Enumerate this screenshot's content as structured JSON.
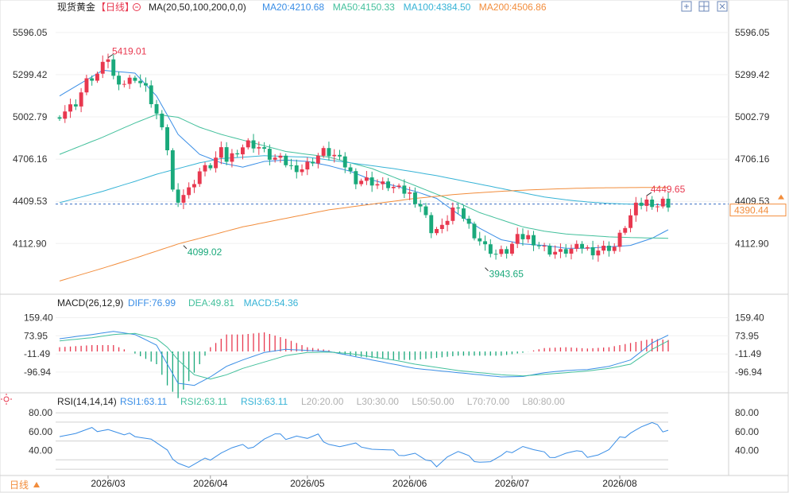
{
  "header": {
    "symbol": "现货黄金",
    "period_tag": "【日线】",
    "ma_label": "MA(20,50,100,200,0,0)",
    "ma_values": [
      {
        "text": "MA20:4210.68",
        "color": "#3a8ee6"
      },
      {
        "text": "MA50:4150.33",
        "color": "#43c09c"
      },
      {
        "text": "MA100:4384.50",
        "color": "#36b3d6"
      },
      {
        "text": "MA200:4506.86",
        "color": "#f28d3c"
      }
    ],
    "icons": [
      "expand-icon",
      "grid-icon",
      "close-icon"
    ]
  },
  "macd_header": {
    "label": "MACD(26,12,9)",
    "values": [
      {
        "text": "DIFF:76.99",
        "color": "#3a8ee6"
      },
      {
        "text": "DEA:49.81",
        "color": "#43c09c"
      },
      {
        "text": "MACD:54.36",
        "color": "#36b3d6"
      }
    ]
  },
  "rsi_header": {
    "label": "RSI(14,14,14)",
    "values": [
      {
        "text": "RSI1:63.11",
        "color": "#3a8ee6"
      },
      {
        "text": "RSI2:63.11",
        "color": "#43c09c"
      },
      {
        "text": "RSI3:63.11",
        "color": "#36b3d6"
      },
      {
        "text": "L20:20.00",
        "color": "#b0b0b0"
      },
      {
        "text": "L30:30.00",
        "color": "#b0b0b0"
      },
      {
        "text": "L50:50.00",
        "color": "#b0b0b0"
      },
      {
        "text": "L70:70.00",
        "color": "#b0b0b0"
      },
      {
        "text": "L80:80.00",
        "color": "#b0b0b0"
      }
    ]
  },
  "footer": {
    "period_button": "日线"
  },
  "colors": {
    "up": "#e8384f",
    "down": "#1aa97b",
    "grid": "#e8e8e8",
    "axis_text": "#333333",
    "current_price": "#f28d3c"
  },
  "chart_data": {
    "type": "candlestick",
    "price_axis": {
      "ticks": [
        5596.05,
        5299.42,
        5002.79,
        4706.16,
        4409.53,
        4112.9
      ],
      "range": [
        3785,
        5690
      ],
      "current_price": 4390.44,
      "annotations": [
        {
          "text": "5419.01",
          "value": 5419.01,
          "type": "high"
        },
        {
          "text": "4099.02",
          "value": 4099.02,
          "type": "low"
        },
        {
          "text": "3943.65",
          "value": 3943.65,
          "type": "low"
        },
        {
          "text": "4449.65",
          "value": 4449.65,
          "type": "high"
        }
      ]
    },
    "x_labels": [
      "2026/03",
      "2026/04",
      "2026/05",
      "2026/06",
      "2026/07",
      "2026/08"
    ],
    "x_label_index": [
      9,
      28,
      46,
      65,
      84,
      104
    ],
    "ma_keypoints": {
      "ma20": [
        [
          0,
          5150
        ],
        [
          8,
          5330
        ],
        [
          14,
          5310
        ],
        [
          18,
          5150
        ],
        [
          22,
          4880
        ],
        [
          26,
          4740
        ],
        [
          30,
          4680
        ],
        [
          34,
          4650
        ],
        [
          38,
          4690
        ],
        [
          42,
          4700
        ],
        [
          46,
          4690
        ],
        [
          50,
          4660
        ],
        [
          54,
          4620
        ],
        [
          58,
          4560
        ],
        [
          62,
          4520
        ],
        [
          66,
          4480
        ],
        [
          70,
          4430
        ],
        [
          74,
          4320
        ],
        [
          78,
          4220
        ],
        [
          82,
          4140
        ],
        [
          86,
          4110
        ],
        [
          90,
          4100
        ],
        [
          94,
          4080
        ],
        [
          98,
          4080
        ],
        [
          102,
          4090
        ],
        [
          106,
          4100
        ],
        [
          110,
          4150
        ],
        [
          113,
          4210
        ]
      ],
      "ma50": [
        [
          0,
          4740
        ],
        [
          8,
          4860
        ],
        [
          14,
          4960
        ],
        [
          18,
          5020
        ],
        [
          22,
          5000
        ],
        [
          26,
          4930
        ],
        [
          30,
          4880
        ],
        [
          34,
          4840
        ],
        [
          38,
          4800
        ],
        [
          42,
          4760
        ],
        [
          46,
          4740
        ],
        [
          50,
          4720
        ],
        [
          54,
          4680
        ],
        [
          58,
          4640
        ],
        [
          62,
          4580
        ],
        [
          66,
          4520
        ],
        [
          70,
          4460
        ],
        [
          74,
          4400
        ],
        [
          78,
          4330
        ],
        [
          82,
          4280
        ],
        [
          86,
          4230
        ],
        [
          90,
          4200
        ],
        [
          94,
          4180
        ],
        [
          98,
          4170
        ],
        [
          102,
          4160
        ],
        [
          106,
          4155
        ],
        [
          110,
          4152
        ],
        [
          113,
          4150
        ]
      ],
      "ma100": [
        [
          0,
          4400
        ],
        [
          8,
          4480
        ],
        [
          14,
          4550
        ],
        [
          18,
          4600
        ],
        [
          22,
          4640
        ],
        [
          26,
          4680
        ],
        [
          30,
          4710
        ],
        [
          34,
          4720
        ],
        [
          38,
          4730
        ],
        [
          42,
          4725
        ],
        [
          46,
          4720
        ],
        [
          50,
          4700
        ],
        [
          54,
          4680
        ],
        [
          58,
          4660
        ],
        [
          62,
          4640
        ],
        [
          66,
          4615
        ],
        [
          70,
          4590
        ],
        [
          74,
          4560
        ],
        [
          78,
          4530
        ],
        [
          82,
          4500
        ],
        [
          86,
          4470
        ],
        [
          90,
          4440
        ],
        [
          94,
          4420
        ],
        [
          98,
          4405
        ],
        [
          102,
          4395
        ],
        [
          106,
          4390
        ],
        [
          110,
          4386
        ],
        [
          113,
          4384
        ]
      ],
      "ma200": [
        [
          0,
          3850
        ],
        [
          8,
          3940
        ],
        [
          14,
          4010
        ],
        [
          18,
          4060
        ],
        [
          22,
          4110
        ],
        [
          26,
          4150
        ],
        [
          30,
          4190
        ],
        [
          34,
          4230
        ],
        [
          38,
          4260
        ],
        [
          42,
          4290
        ],
        [
          46,
          4320
        ],
        [
          50,
          4350
        ],
        [
          54,
          4370
        ],
        [
          58,
          4390
        ],
        [
          62,
          4410
        ],
        [
          66,
          4430
        ],
        [
          70,
          4445
        ],
        [
          74,
          4460
        ],
        [
          78,
          4470
        ],
        [
          82,
          4480
        ],
        [
          86,
          4488
        ],
        [
          90,
          4494
        ],
        [
          94,
          4499
        ],
        [
          98,
          4503
        ],
        [
          102,
          4505
        ],
        [
          106,
          4506
        ],
        [
          110,
          4507
        ],
        [
          113,
          4507
        ]
      ]
    },
    "close_keypoints": [
      [
        0,
        5020
      ],
      [
        3,
        5100
      ],
      [
        5,
        5250
      ],
      [
        7,
        5300
      ],
      [
        9,
        5419
      ],
      [
        10,
        5280
      ],
      [
        12,
        5240
      ],
      [
        14,
        5280
      ],
      [
        16,
        5200
      ],
      [
        18,
        5020
      ],
      [
        20,
        4780
      ],
      [
        21,
        4480
      ],
      [
        22,
        4430
      ],
      [
        24,
        4490
      ],
      [
        26,
        4620
      ],
      [
        28,
        4660
      ],
      [
        30,
        4760
      ],
      [
        31,
        4700
      ],
      [
        33,
        4770
      ],
      [
        35,
        4820
      ],
      [
        37,
        4790
      ],
      [
        39,
        4720
      ],
      [
        41,
        4700
      ],
      [
        43,
        4650
      ],
      [
        45,
        4640
      ],
      [
        47,
        4700
      ],
      [
        49,
        4760
      ],
      [
        51,
        4730
      ],
      [
        53,
        4660
      ],
      [
        55,
        4560
      ],
      [
        57,
        4560
      ],
      [
        59,
        4530
      ],
      [
        61,
        4520
      ],
      [
        63,
        4490
      ],
      [
        65,
        4460
      ],
      [
        67,
        4380
      ],
      [
        69,
        4210
      ],
      [
        71,
        4220
      ],
      [
        73,
        4360
      ],
      [
        75,
        4300
      ],
      [
        77,
        4180
      ],
      [
        79,
        4090
      ],
      [
        81,
        4040
      ],
      [
        83,
        4060
      ],
      [
        85,
        4150
      ],
      [
        87,
        4160
      ],
      [
        89,
        4100
      ],
      [
        91,
        4060
      ],
      [
        93,
        4050
      ],
      [
        95,
        4070
      ],
      [
        97,
        4090
      ],
      [
        99,
        4060
      ],
      [
        101,
        4080
      ],
      [
        103,
        4090
      ],
      [
        105,
        4240
      ],
      [
        107,
        4370
      ],
      [
        109,
        4410
      ],
      [
        110,
        4400
      ],
      [
        111,
        4380
      ],
      [
        112,
        4410
      ],
      [
        113,
        4390
      ]
    ],
    "macd_axis": {
      "ticks": [
        159.4,
        73.95,
        -11.49,
        -96.94
      ],
      "range": [
        -180,
        195
      ]
    },
    "diff_keypoints": [
      [
        0,
        60
      ],
      [
        6,
        80
      ],
      [
        10,
        95
      ],
      [
        14,
        80
      ],
      [
        18,
        30
      ],
      [
        20,
        -60
      ],
      [
        22,
        -150
      ],
      [
        25,
        -160
      ],
      [
        28,
        -120
      ],
      [
        31,
        -70
      ],
      [
        34,
        -40
      ],
      [
        38,
        -5
      ],
      [
        42,
        10
      ],
      [
        46,
        5
      ],
      [
        50,
        0
      ],
      [
        54,
        -20
      ],
      [
        58,
        -40
      ],
      [
        62,
        -60
      ],
      [
        66,
        -80
      ],
      [
        70,
        -90
      ],
      [
        74,
        -100
      ],
      [
        78,
        -110
      ],
      [
        82,
        -120
      ],
      [
        86,
        -118
      ],
      [
        90,
        -100
      ],
      [
        94,
        -90
      ],
      [
        98,
        -85
      ],
      [
        102,
        -70
      ],
      [
        106,
        -40
      ],
      [
        110,
        40
      ],
      [
        113,
        77
      ]
    ],
    "dea_keypoints": [
      [
        0,
        50
      ],
      [
        6,
        65
      ],
      [
        10,
        80
      ],
      [
        14,
        85
      ],
      [
        18,
        60
      ],
      [
        20,
        20
      ],
      [
        22,
        -40
      ],
      [
        25,
        -110
      ],
      [
        28,
        -130
      ],
      [
        31,
        -110
      ],
      [
        34,
        -80
      ],
      [
        38,
        -50
      ],
      [
        42,
        -20
      ],
      [
        46,
        -5
      ],
      [
        50,
        -3
      ],
      [
        54,
        -10
      ],
      [
        58,
        -25
      ],
      [
        62,
        -40
      ],
      [
        66,
        -60
      ],
      [
        70,
        -75
      ],
      [
        74,
        -90
      ],
      [
        78,
        -100
      ],
      [
        82,
        -110
      ],
      [
        86,
        -115
      ],
      [
        90,
        -108
      ],
      [
        94,
        -100
      ],
      [
        98,
        -92
      ],
      [
        102,
        -80
      ],
      [
        106,
        -60
      ],
      [
        110,
        10
      ],
      [
        113,
        50
      ]
    ],
    "rsi_axis": {
      "ticks": [
        80.0,
        60.0,
        40.0
      ],
      "range": [
        15,
        86
      ],
      "levels": [
        80,
        70,
        50,
        30,
        20
      ]
    },
    "rsi_keypoints": [
      [
        0,
        57
      ],
      [
        3,
        58
      ],
      [
        6,
        62
      ],
      [
        9,
        63
      ],
      [
        12,
        55
      ],
      [
        14,
        57
      ],
      [
        17,
        52
      ],
      [
        20,
        38
      ],
      [
        22,
        28
      ],
      [
        24,
        22
      ],
      [
        26,
        27
      ],
      [
        28,
        32
      ],
      [
        30,
        38
      ],
      [
        32,
        42
      ],
      [
        34,
        44
      ],
      [
        36,
        45
      ],
      [
        38,
        52
      ],
      [
        40,
        56
      ],
      [
        42,
        54
      ],
      [
        44,
        56
      ],
      [
        46,
        52
      ],
      [
        48,
        55
      ],
      [
        50,
        48
      ],
      [
        52,
        44
      ],
      [
        54,
        45
      ],
      [
        56,
        46
      ],
      [
        58,
        42
      ],
      [
        60,
        40
      ],
      [
        62,
        38
      ],
      [
        64,
        36
      ],
      [
        66,
        37
      ],
      [
        68,
        28
      ],
      [
        70,
        25
      ],
      [
        72,
        34
      ],
      [
        74,
        38
      ],
      [
        76,
        32
      ],
      [
        78,
        29
      ],
      [
        80,
        28
      ],
      [
        82,
        33
      ],
      [
        84,
        40
      ],
      [
        86,
        45
      ],
      [
        88,
        40
      ],
      [
        90,
        36
      ],
      [
        92,
        34
      ],
      [
        94,
        37
      ],
      [
        96,
        38
      ],
      [
        98,
        35
      ],
      [
        100,
        36
      ],
      [
        102,
        40
      ],
      [
        104,
        52
      ],
      [
        106,
        60
      ],
      [
        108,
        65
      ],
      [
        110,
        68
      ],
      [
        112,
        62
      ],
      [
        113,
        63
      ]
    ]
  }
}
